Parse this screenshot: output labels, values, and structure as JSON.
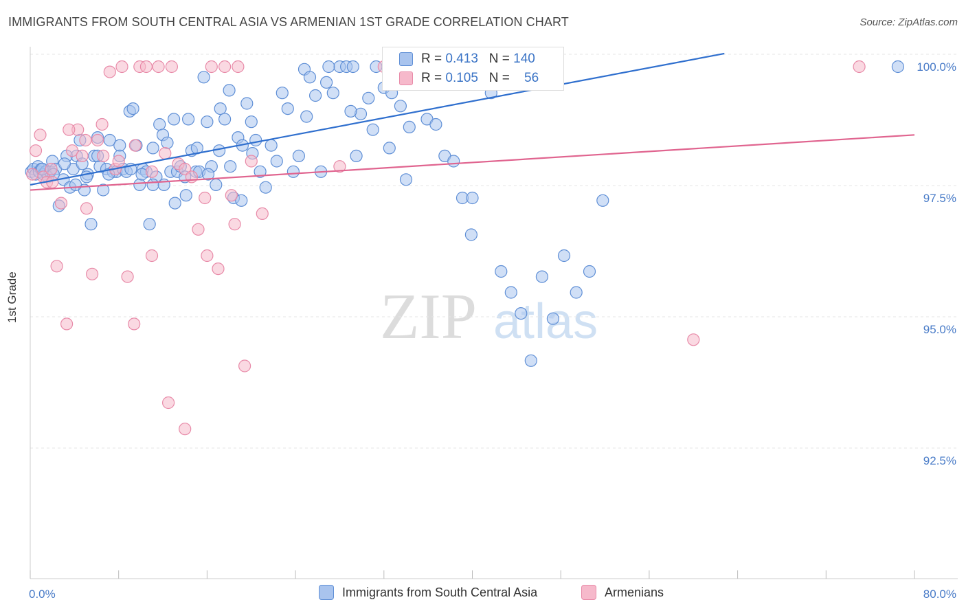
{
  "title": "IMMIGRANTS FROM SOUTH CENTRAL ASIA VS ARMENIAN 1ST GRADE CORRELATION CHART",
  "source": "Source: ZipAtlas.com",
  "watermark": {
    "zip": "ZIP",
    "atlas": "atlas"
  },
  "colors": {
    "blue_fill": "#a9c4ee",
    "blue_stroke": "#5f8fd6",
    "blue_line": "#2f6fce",
    "pink_fill": "#f6b9cb",
    "pink_stroke": "#e88aa8",
    "pink_line": "#e0648f",
    "axis_text": "#4a7cc8",
    "grid": "#e6e6e6"
  },
  "legend_top": [
    {
      "r_label": "R =",
      "r_value": "0.413",
      "n_label": "N =",
      "n_value": "140",
      "color": "#a9c4ee"
    },
    {
      "r_label": "R =",
      "r_value": "0.105",
      "n_label": "N =",
      "n_value": "56",
      "color": "#f6b9cb"
    }
  ],
  "legend_bottom": [
    {
      "label": "Immigrants from South Central Asia",
      "color": "#a9c4ee"
    },
    {
      "label": "Armenians",
      "color": "#f6b9cb"
    }
  ],
  "chart_data": {
    "type": "scatter",
    "title": "IMMIGRANTS FROM SOUTH CENTRAL ASIA VS ARMENIAN 1ST GRADE CORRELATION CHART",
    "xlabel": "",
    "ylabel": "1st Grade",
    "xlim": [
      0,
      80
    ],
    "ylim": [
      90.0,
      100.5
    ],
    "x_tick_labels": [
      "0.0%",
      "80.0%"
    ],
    "y_ticks": [
      92.5,
      95.0,
      97.5,
      100.0
    ],
    "y_tick_labels": [
      "92.5%",
      "95.0%",
      "97.5%",
      "100.0%"
    ],
    "series": [
      {
        "name": "Immigrants from South Central Asia",
        "R": 0.413,
        "N": 140,
        "trend": {
          "x": [
            0,
            62.8
          ],
          "y": [
            97.75,
            100.25
          ]
        },
        "x": [
          0.1,
          0.3,
          0.5,
          0.7,
          0.8,
          1.0,
          1.2,
          1.4,
          1.6,
          1.8,
          2.0,
          2.3,
          2.6,
          3.0,
          3.3,
          3.6,
          3.9,
          4.2,
          4.5,
          4.7,
          4.9,
          5.2,
          5.5,
          5.8,
          6.1,
          6.3,
          6.6,
          6.9,
          7.2,
          7.5,
          7.8,
          8.1,
          8.4,
          8.7,
          9.0,
          9.3,
          9.6,
          9.9,
          10.2,
          10.5,
          10.8,
          11.1,
          11.4,
          11.7,
          12.0,
          12.4,
          12.7,
          13.0,
          13.3,
          13.6,
          14.0,
          14.3,
          14.6,
          15.0,
          15.3,
          15.7,
          16.0,
          16.4,
          16.8,
          17.2,
          17.6,
          18.0,
          18.4,
          18.8,
          19.2,
          19.6,
          20.0,
          20.4,
          20.8,
          21.3,
          21.8,
          22.3,
          22.8,
          23.3,
          23.8,
          24.3,
          24.8,
          25.3,
          25.8,
          26.3,
          26.8,
          27.4,
          28.0,
          28.6,
          29.2,
          29.9,
          30.6,
          31.3,
          32.0,
          32.7,
          33.5,
          34.3,
          35.1,
          35.9,
          36.7,
          37.5,
          38.3,
          39.1,
          39.9,
          40.8,
          41.7,
          42.6,
          43.5,
          44.4,
          45.3,
          46.3,
          47.3,
          48.3,
          49.4,
          50.6,
          51.8,
          1.1,
          2.1,
          3.1,
          4.1,
          5.1,
          6.1,
          7.1,
          8.1,
          9.1,
          10.1,
          11.1,
          12.1,
          13.1,
          14.1,
          15.1,
          16.1,
          17.1,
          18.1,
          19.1,
          20.1,
          25.0,
          27.0,
          29.0,
          31.0,
          32.5,
          34.0,
          29.5,
          40.0,
          78.5
        ],
        "y": [
          98.0,
          98.05,
          97.95,
          98.1,
          98.0,
          98.05,
          97.95,
          98.0,
          97.9,
          98.0,
          98.2,
          98.05,
          97.35,
          97.85,
          98.3,
          97.7,
          98.05,
          98.3,
          98.6,
          98.15,
          97.65,
          97.95,
          97.0,
          98.3,
          98.65,
          98.1,
          97.65,
          98.05,
          98.6,
          98.0,
          98.0,
          98.5,
          98.05,
          98.0,
          99.15,
          99.2,
          98.5,
          97.75,
          98.05,
          98.0,
          97.0,
          98.45,
          97.9,
          98.9,
          98.7,
          98.55,
          98.0,
          99.0,
          98.0,
          98.1,
          97.9,
          99.0,
          98.4,
          98.0,
          98.0,
          99.8,
          98.95,
          98.1,
          97.75,
          99.2,
          99.0,
          99.55,
          97.5,
          98.65,
          98.5,
          99.3,
          98.95,
          98.6,
          98.0,
          97.7,
          98.5,
          98.2,
          99.5,
          99.2,
          98.0,
          98.3,
          99.95,
          99.8,
          99.45,
          98.0,
          99.7,
          99.5,
          100.0,
          100.0,
          100.0,
          99.1,
          99.4,
          100.0,
          99.6,
          99.5,
          99.25,
          98.85,
          100.0,
          99.0,
          98.9,
          98.3,
          98.2,
          97.5,
          96.8,
          100.0,
          99.5,
          96.1,
          95.7,
          95.3,
          94.4,
          96.0,
          95.2,
          96.4,
          95.7,
          96.1,
          97.45,
          98.05,
          97.95,
          98.15,
          97.75,
          97.9,
          98.3,
          97.95,
          98.3,
          98.05,
          97.95,
          97.75,
          97.75,
          97.4,
          97.55,
          98.45,
          97.95,
          98.4,
          98.1,
          97.45,
          98.35,
          99.05,
          100.0,
          99.15,
          98.8,
          98.45,
          97.85,
          98.3,
          97.5,
          100.0
        ]
      },
      {
        "name": "Armenians",
        "R": 0.105,
        "N": 56,
        "trend": {
          "x": [
            0,
            80
          ],
          "y": [
            97.65,
            98.7
          ]
        },
        "x": [
          0.2,
          0.5,
          0.9,
          1.2,
          1.5,
          1.9,
          2.4,
          2.8,
          3.3,
          3.8,
          4.3,
          4.7,
          5.1,
          5.6,
          6.1,
          6.6,
          7.2,
          7.7,
          8.3,
          8.8,
          9.4,
          9.9,
          10.5,
          11.0,
          11.6,
          12.2,
          12.8,
          13.4,
          14.0,
          14.6,
          15.2,
          15.8,
          16.4,
          17.0,
          17.6,
          18.2,
          18.8,
          19.4,
          20.0,
          2.0,
          3.5,
          5.0,
          6.5,
          8.0,
          9.5,
          11.0,
          12.5,
          14.0,
          16.0,
          18.5,
          21.0,
          28.0,
          32.0,
          35.0,
          60.0,
          75.0
        ],
        "y": [
          97.95,
          98.4,
          98.7,
          97.9,
          97.8,
          98.05,
          96.2,
          97.4,
          95.1,
          98.4,
          98.8,
          98.3,
          97.3,
          96.05,
          98.6,
          98.3,
          99.9,
          98.05,
          100.0,
          96.0,
          95.1,
          100.0,
          100.0,
          96.4,
          100.0,
          98.35,
          100.0,
          98.15,
          98.05,
          97.9,
          96.9,
          97.5,
          100.0,
          96.15,
          100.0,
          97.55,
          100.0,
          94.3,
          98.2,
          97.8,
          98.8,
          98.6,
          98.9,
          98.2,
          98.5,
          98.0,
          93.6,
          93.1,
          96.4,
          97.0,
          97.2,
          98.1,
          100.0,
          100.0,
          94.8,
          100.0
        ]
      }
    ]
  }
}
